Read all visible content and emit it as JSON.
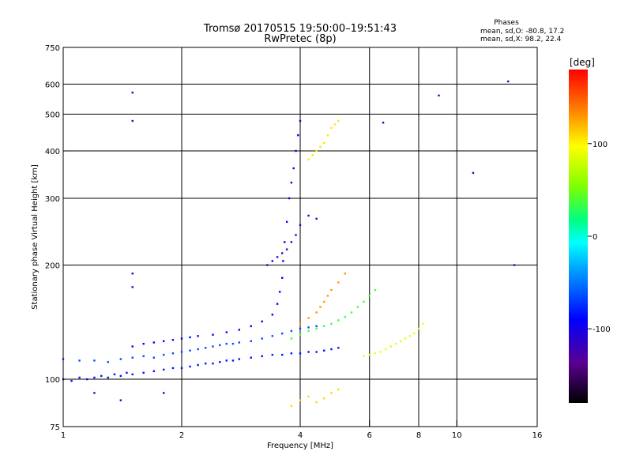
{
  "chart_data": {
    "type": "scatter",
    "title": "Tromsø 20170515 19:50:00–19:51:43",
    "subtitle": "RwPretec (8p)",
    "xlabel": "Frequency [MHz]",
    "ylabel": "Stationary phase Virtual Height [km]",
    "x_scale": "log",
    "y_scale": "log",
    "xlim": [
      1,
      16
    ],
    "ylim": [
      75,
      750
    ],
    "x_ticks": [
      {
        "value": 1,
        "label": "1"
      },
      {
        "value": 2,
        "label": "2"
      },
      {
        "value": 4,
        "label": "4"
      },
      {
        "value": 6,
        "label": "6"
      },
      {
        "value": 8,
        "label": "8"
      },
      {
        "value": 10,
        "label": "10"
      },
      {
        "value": 16,
        "label": "16"
      }
    ],
    "x_grid": [
      2,
      4,
      6,
      8,
      10
    ],
    "y_ticks": [
      {
        "value": 75,
        "label": "75"
      },
      {
        "value": 100,
        "label": "100"
      },
      {
        "value": 200,
        "label": "200"
      },
      {
        "value": 300,
        "label": "300"
      },
      {
        "value": 400,
        "label": "400"
      },
      {
        "value": 500,
        "label": "500"
      },
      {
        "value": 600,
        "label": "600"
      },
      {
        "value": 750,
        "label": "750"
      }
    ],
    "y_grid": [
      100,
      200,
      300,
      400,
      500,
      600
    ],
    "grid": true,
    "legend": {
      "title": "Phases",
      "lines": [
        "mean, sd,O: -80.8, 17.2",
        "mean, sd,X:  98.2, 22.4"
      ],
      "placement": "top-right"
    },
    "colorbar": {
      "label": "[deg]",
      "min": -180,
      "max": 180,
      "ticks": [
        {
          "value": 100,
          "label": "100"
        },
        {
          "value": 0,
          "label": "0"
        },
        {
          "value": -100,
          "label": "-100"
        }
      ]
    },
    "series": [
      {
        "points": [
          [
            1.0,
            100
          ],
          [
            1.05,
            99
          ],
          [
            1.1,
            101
          ],
          [
            1.15,
            100
          ],
          [
            1.2,
            101
          ],
          [
            1.25,
            102
          ],
          [
            1.3,
            101
          ],
          [
            1.35,
            103
          ],
          [
            1.4,
            102
          ],
          [
            1.45,
            104
          ],
          [
            1.5,
            103
          ],
          [
            1.6,
            104
          ],
          [
            1.7,
            105
          ],
          [
            1.8,
            106
          ],
          [
            1.9,
            107
          ],
          [
            2.0,
            107
          ],
          [
            2.1,
            108
          ],
          [
            2.2,
            109
          ],
          [
            2.3,
            110
          ],
          [
            2.4,
            110
          ],
          [
            2.5,
            111
          ],
          [
            2.6,
            112
          ],
          [
            2.7,
            112
          ],
          [
            2.8,
            113
          ],
          [
            3.0,
            114
          ],
          [
            3.2,
            115
          ],
          [
            3.4,
            116
          ],
          [
            3.6,
            116
          ],
          [
            3.8,
            117
          ],
          [
            4.0,
            117
          ],
          [
            4.2,
            118
          ],
          [
            4.4,
            118
          ],
          [
            4.6,
            119
          ],
          [
            4.8,
            120
          ],
          [
            5.0,
            121
          ]
        ],
        "phase": -85
      },
      {
        "points": [
          [
            1.0,
            113
          ],
          [
            1.1,
            112
          ],
          [
            1.2,
            112
          ],
          [
            1.3,
            111
          ],
          [
            1.4,
            113
          ],
          [
            1.5,
            114
          ],
          [
            1.6,
            115
          ],
          [
            1.7,
            114
          ],
          [
            1.8,
            116
          ],
          [
            1.9,
            117
          ],
          [
            2.0,
            118
          ],
          [
            2.1,
            119
          ],
          [
            2.2,
            120
          ],
          [
            2.3,
            121
          ],
          [
            2.4,
            122
          ],
          [
            2.5,
            123
          ],
          [
            2.6,
            124
          ],
          [
            2.7,
            124
          ],
          [
            2.8,
            125
          ],
          [
            3.0,
            126
          ],
          [
            3.2,
            128
          ],
          [
            3.4,
            130
          ],
          [
            3.6,
            132
          ],
          [
            3.8,
            134
          ],
          [
            4.0,
            136
          ],
          [
            4.2,
            137
          ],
          [
            4.4,
            138
          ]
        ],
        "phase": -65
      },
      {
        "points": [
          [
            1.5,
            122
          ],
          [
            1.6,
            124
          ],
          [
            1.7,
            125
          ],
          [
            1.8,
            126
          ],
          [
            1.9,
            127
          ],
          [
            2.0,
            128
          ],
          [
            2.1,
            129
          ],
          [
            2.2,
            130
          ],
          [
            2.4,
            131
          ],
          [
            2.6,
            133
          ],
          [
            2.8,
            135
          ],
          [
            3.0,
            138
          ],
          [
            3.2,
            142
          ],
          [
            3.4,
            148
          ],
          [
            3.5,
            158
          ],
          [
            3.55,
            170
          ],
          [
            3.6,
            185
          ],
          [
            3.62,
            205
          ],
          [
            3.65,
            230
          ],
          [
            3.7,
            260
          ],
          [
            3.75,
            300
          ],
          [
            3.8,
            330
          ],
          [
            3.85,
            360
          ],
          [
            3.9,
            400
          ],
          [
            3.95,
            440
          ],
          [
            4.0,
            480
          ]
        ],
        "phase": -90
      },
      {
        "points": [
          [
            3.8,
            128
          ],
          [
            4.0,
            131
          ],
          [
            4.2,
            134
          ],
          [
            4.4,
            136
          ],
          [
            4.6,
            138
          ],
          [
            4.8,
            140
          ],
          [
            5.0,
            143
          ],
          [
            5.2,
            146
          ],
          [
            5.4,
            150
          ],
          [
            5.6,
            155
          ],
          [
            5.8,
            160
          ],
          [
            6.0,
            166
          ],
          [
            6.2,
            172
          ]
        ],
        "phase": 35
      },
      {
        "points": [
          [
            4.0,
            140
          ],
          [
            4.2,
            145
          ],
          [
            4.4,
            150
          ],
          [
            4.5,
            155
          ],
          [
            4.6,
            160
          ],
          [
            4.7,
            166
          ],
          [
            4.8,
            172
          ],
          [
            5.0,
            180
          ],
          [
            5.2,
            190
          ]
        ],
        "phase": 130
      },
      {
        "points": [
          [
            4.2,
            380
          ],
          [
            4.3,
            390
          ],
          [
            4.4,
            400
          ],
          [
            4.5,
            410
          ],
          [
            4.6,
            420
          ],
          [
            4.7,
            440
          ],
          [
            4.8,
            460
          ],
          [
            4.9,
            470
          ],
          [
            5.0,
            480
          ]
        ],
        "phase": 105
      },
      {
        "points": [
          [
            5.8,
            115
          ],
          [
            6.0,
            116
          ],
          [
            6.2,
            117
          ],
          [
            6.4,
            118
          ],
          [
            6.6,
            120
          ],
          [
            6.8,
            122
          ],
          [
            7.0,
            124
          ],
          [
            7.2,
            126
          ],
          [
            7.4,
            128
          ],
          [
            7.6,
            130
          ],
          [
            7.8,
            132
          ],
          [
            8.0,
            136
          ],
          [
            8.2,
            140
          ]
        ],
        "phase": 90
      },
      {
        "points": [
          [
            3.3,
            200
          ],
          [
            3.4,
            205
          ],
          [
            3.5,
            210
          ],
          [
            3.6,
            215
          ],
          [
            3.7,
            220
          ],
          [
            3.8,
            230
          ],
          [
            3.9,
            240
          ],
          [
            4.0,
            255
          ],
          [
            4.2,
            270
          ],
          [
            4.4,
            265
          ]
        ],
        "phase": -110
      },
      {
        "points": [
          [
            3.8,
            85
          ],
          [
            4.0,
            88
          ],
          [
            4.2,
            90
          ],
          [
            4.4,
            87
          ],
          [
            4.6,
            89
          ],
          [
            4.8,
            92
          ],
          [
            5.0,
            94
          ]
        ],
        "phase": 110
      },
      {
        "points": [
          [
            1.5,
            570
          ],
          [
            1.5,
            480
          ],
          [
            9.0,
            560
          ],
          [
            13.5,
            610
          ],
          [
            6.5,
            475
          ],
          [
            1.5,
            175
          ],
          [
            1.5,
            190
          ],
          [
            11.0,
            350
          ],
          [
            14.0,
            200
          ],
          [
            1.2,
            92
          ],
          [
            1.4,
            88
          ],
          [
            1.8,
            92
          ]
        ],
        "phase": -115
      }
    ]
  }
}
